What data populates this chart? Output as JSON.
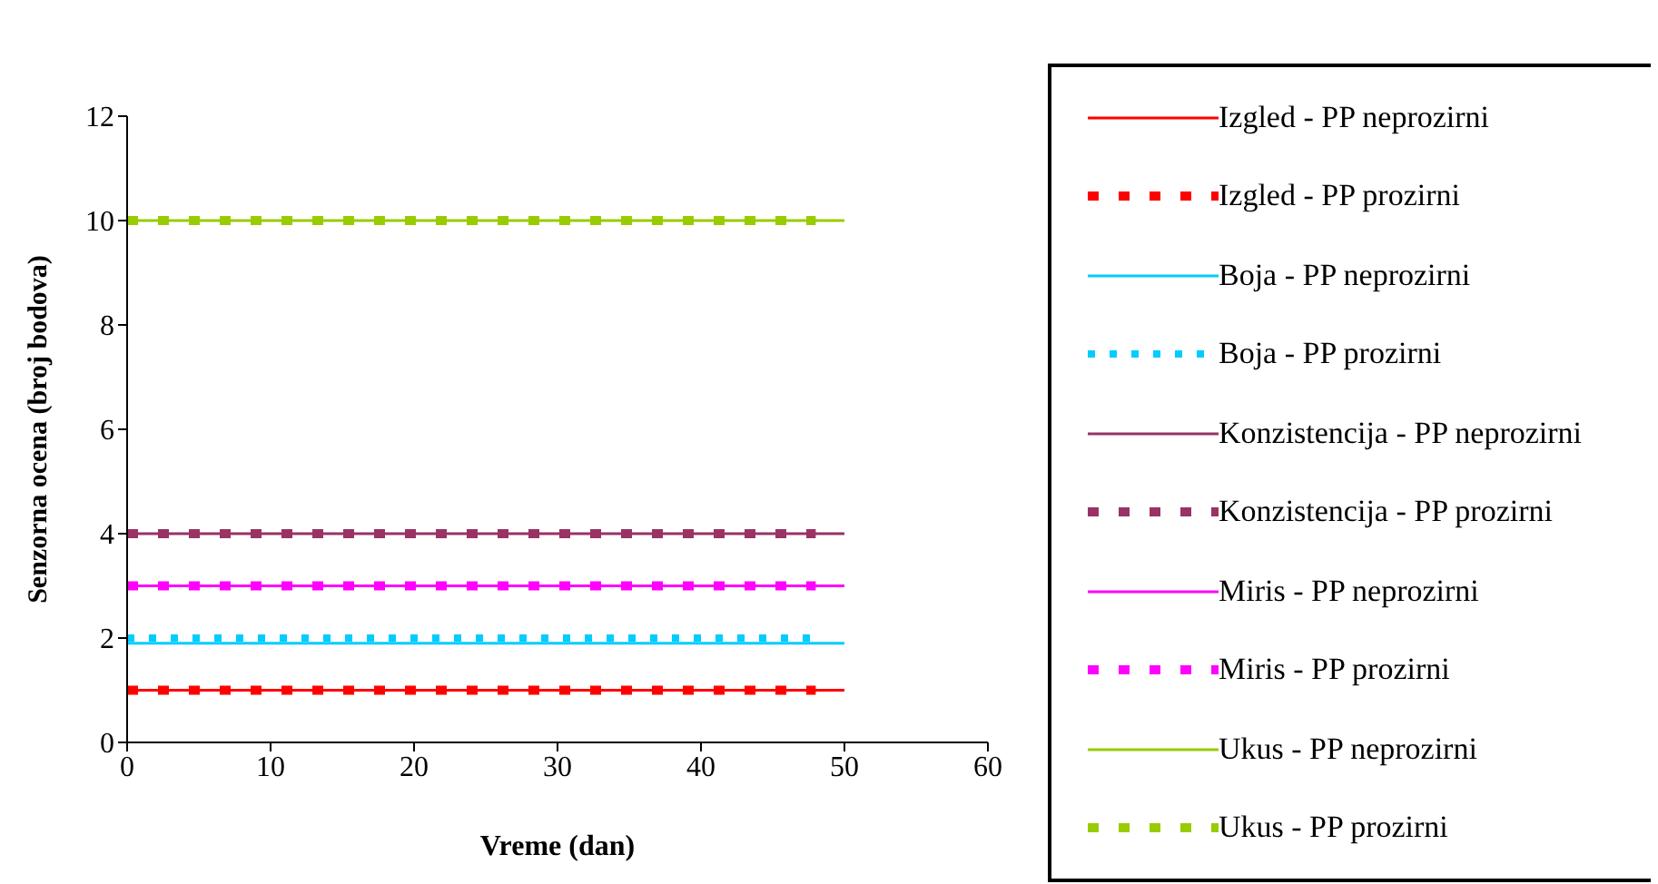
{
  "chart_data": {
    "type": "line",
    "xlabel": "Vreme (dan)",
    "ylabel": "Senzorna ocena (broj bodova)",
    "xlim": [
      0,
      60
    ],
    "xticks": [
      0,
      10,
      20,
      30,
      40,
      50,
      60
    ],
    "ylim": [
      0,
      12
    ],
    "yticks": [
      0,
      2,
      4,
      6,
      8,
      10,
      12
    ],
    "grid": false,
    "legend": "right",
    "marker": "none",
    "series": [
      {
        "name": "Izgled - PP neprozirni",
        "color": "#ff0000",
        "line_style": "solid",
        "x": [
          0,
          50
        ],
        "values": [
          1,
          1
        ]
      },
      {
        "name": "Izgled - PP prozirni",
        "color": "#ff0000",
        "line_style": "dashed",
        "x": [
          0,
          48
        ],
        "values": [
          1,
          1
        ]
      },
      {
        "name": "Boja - PP neprozirni",
        "color": "#00ccff",
        "line_style": "solid",
        "x": [
          0,
          50
        ],
        "values": [
          1.9,
          1.9
        ]
      },
      {
        "name": "Boja - PP prozirni",
        "color": "#00ccff",
        "line_style": "dotted",
        "x": [
          0,
          48
        ],
        "values": [
          2,
          2
        ]
      },
      {
        "name": "Konzistencija - PP neprozirni",
        "color": "#993366",
        "line_style": "solid",
        "x": [
          0,
          50
        ],
        "values": [
          4,
          4
        ]
      },
      {
        "name": "Konzistencija - PP prozirni",
        "color": "#993366",
        "line_style": "dashed",
        "x": [
          0,
          48
        ],
        "values": [
          4,
          4
        ]
      },
      {
        "name": "Miris - PP neprozirni",
        "color": "#ff00ff",
        "line_style": "solid",
        "x": [
          0,
          50
        ],
        "values": [
          3,
          3
        ]
      },
      {
        "name": "Miris - PP prozirni",
        "color": "#ff00ff",
        "line_style": "dashed",
        "x": [
          0,
          48
        ],
        "values": [
          3,
          3
        ]
      },
      {
        "name": "Ukus - PP neprozirni",
        "color": "#99cc00",
        "line_style": "solid",
        "x": [
          0,
          50
        ],
        "values": [
          10,
          10
        ]
      },
      {
        "name": "Ukus - PP prozirni",
        "color": "#99cc00",
        "line_style": "dashed",
        "x": [
          0,
          48
        ],
        "values": [
          10,
          10
        ]
      }
    ]
  }
}
